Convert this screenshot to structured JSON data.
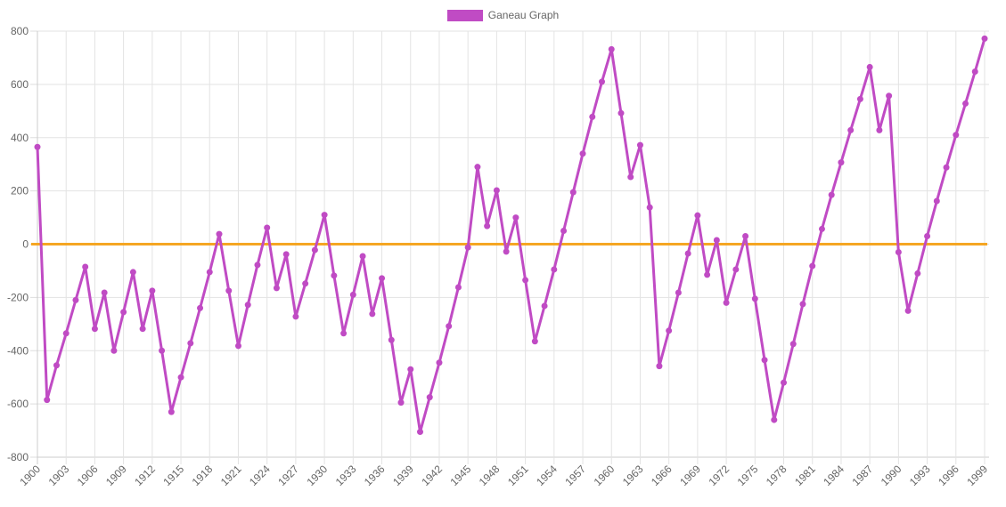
{
  "chart_data": {
    "type": "line",
    "title": "",
    "legend": {
      "label": "Ganeau Graph",
      "placement": "top-center"
    },
    "xlabel": "",
    "ylabel": "",
    "ylim": [
      -800,
      800
    ],
    "y_ticks": [
      "800",
      "600",
      "400",
      "200",
      "0",
      "-200",
      "-400",
      "-600",
      "-800"
    ],
    "y_tick_values": [
      800,
      600,
      400,
      200,
      0,
      -200,
      -400,
      -600,
      -800
    ],
    "x_start": 1900,
    "x_end": 1999,
    "x_tick_step": 3,
    "grid": true,
    "series": [
      {
        "name": "Ganeau Graph",
        "color": "#c04bc4",
        "values": [
          365,
          -585,
          -455,
          -335,
          -210,
          -85,
          -318,
          -182,
          -400,
          -255,
          -105,
          -318,
          -175,
          -400,
          -630,
          -500,
          -372,
          -240,
          -105,
          38,
          -175,
          -382,
          -228,
          -78,
          62,
          -165,
          -38,
          -272,
          -148,
          -22,
          110,
          -118,
          -335,
          -190,
          -45,
          -262,
          -128,
          -360,
          -595,
          -470,
          -705,
          -575,
          -445,
          -308,
          -162,
          -12,
          290,
          68,
          202,
          -28,
          100,
          -135,
          -365,
          -232,
          -95,
          50,
          195,
          340,
          478,
          610,
          732,
          492,
          252,
          372,
          138,
          -458,
          -325,
          -182,
          -35,
          108,
          -115,
          15,
          -220,
          -95,
          30,
          -205,
          -435,
          -660,
          -520,
          -375,
          -225,
          -82,
          57,
          185,
          307,
          428,
          545,
          665,
          428,
          557,
          -30,
          -250,
          -110,
          30,
          162,
          288,
          410,
          528,
          648,
          772
        ]
      }
    ],
    "reference_line": {
      "value": 0,
      "color": "#f5a623"
    }
  }
}
